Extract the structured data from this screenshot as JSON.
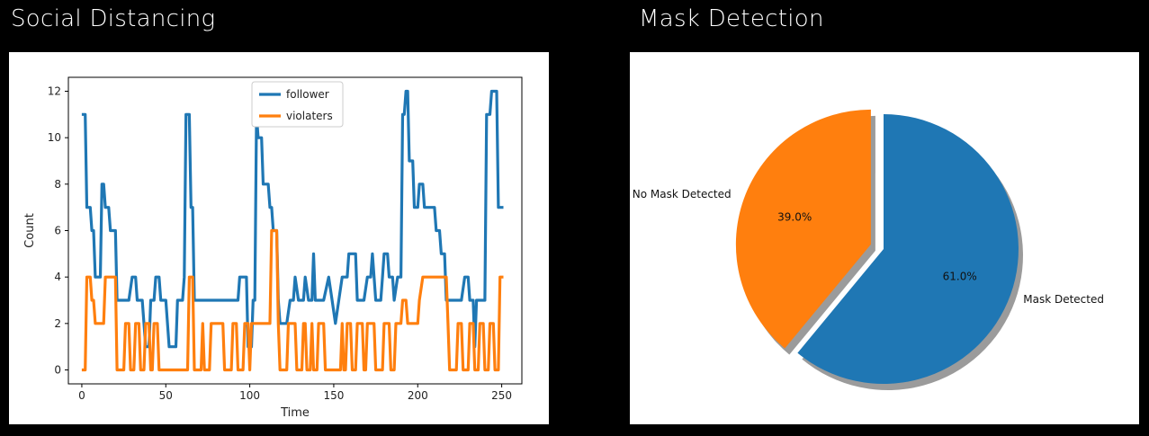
{
  "sections": {
    "left_title": "Social Distancing",
    "right_title": "Mask Detection"
  },
  "chart_data": [
    {
      "type": "line",
      "title": "",
      "xlabel": "Time",
      "ylabel": "Count",
      "xlim": [
        -8,
        262
      ],
      "ylim": [
        -0.6,
        12.6
      ],
      "xticks": [
        0,
        50,
        100,
        150,
        200,
        250
      ],
      "yticks": [
        0,
        2,
        4,
        6,
        8,
        10,
        12
      ],
      "legend_position": "top-center",
      "grid": false,
      "series": [
        {
          "name": "follower",
          "color": "#1f77b4",
          "points": [
            [
              0,
              11
            ],
            [
              2,
              11
            ],
            [
              3,
              7
            ],
            [
              5,
              7
            ],
            [
              6,
              6
            ],
            [
              7,
              6
            ],
            [
              8,
              4
            ],
            [
              11,
              4
            ],
            [
              12,
              8
            ],
            [
              13,
              8
            ],
            [
              14,
              7
            ],
            [
              16,
              7
            ],
            [
              17,
              6
            ],
            [
              20,
              6
            ],
            [
              21,
              3
            ],
            [
              28,
              3
            ],
            [
              30,
              4
            ],
            [
              32,
              4
            ],
            [
              33,
              3
            ],
            [
              36,
              3
            ],
            [
              38,
              1
            ],
            [
              40,
              1
            ],
            [
              41,
              3
            ],
            [
              43,
              3
            ],
            [
              44,
              4
            ],
            [
              46,
              4
            ],
            [
              47,
              3
            ],
            [
              50,
              3
            ],
            [
              52,
              1
            ],
            [
              56,
              1
            ],
            [
              57,
              3
            ],
            [
              60,
              3
            ],
            [
              61,
              4
            ],
            [
              62,
              11
            ],
            [
              64,
              11
            ],
            [
              65,
              7
            ],
            [
              66,
              7
            ],
            [
              67,
              3
            ],
            [
              80,
              3
            ],
            [
              84,
              3
            ],
            [
              93,
              3
            ],
            [
              94,
              4
            ],
            [
              98,
              4
            ],
            [
              99,
              1
            ],
            [
              101,
              1
            ],
            [
              102,
              3
            ],
            [
              103,
              3
            ],
            [
              104,
              11
            ],
            [
              105,
              10
            ],
            [
              107,
              10
            ],
            [
              108,
              8
            ],
            [
              111,
              8
            ],
            [
              112,
              7
            ],
            [
              113,
              7
            ],
            [
              114,
              6
            ],
            [
              116,
              6
            ],
            [
              117,
              3
            ],
            [
              118,
              2
            ],
            [
              122,
              2
            ],
            [
              124,
              3
            ],
            [
              126,
              3
            ],
            [
              127,
              4
            ],
            [
              129,
              3
            ],
            [
              132,
              3
            ],
            [
              133,
              4
            ],
            [
              135,
              3
            ],
            [
              137,
              3
            ],
            [
              138,
              5
            ],
            [
              139,
              3
            ],
            [
              144,
              3
            ],
            [
              147,
              4
            ],
            [
              149,
              3
            ],
            [
              151,
              2
            ],
            [
              155,
              4
            ],
            [
              158,
              4
            ],
            [
              159,
              5
            ],
            [
              163,
              5
            ],
            [
              164,
              3
            ],
            [
              168,
              3
            ],
            [
              170,
              4
            ],
            [
              172,
              4
            ],
            [
              173,
              5
            ],
            [
              175,
              3
            ],
            [
              178,
              3
            ],
            [
              179,
              4
            ],
            [
              180,
              5
            ],
            [
              182,
              5
            ],
            [
              183,
              4
            ],
            [
              185,
              4
            ],
            [
              186,
              3
            ],
            [
              188,
              4
            ],
            [
              190,
              4
            ],
            [
              191,
              11
            ],
            [
              192,
              11
            ],
            [
              193,
              12
            ],
            [
              194,
              12
            ],
            [
              195,
              9
            ],
            [
              197,
              9
            ],
            [
              198,
              7
            ],
            [
              200,
              7
            ],
            [
              201,
              8
            ],
            [
              203,
              8
            ],
            [
              204,
              7
            ],
            [
              210,
              7
            ],
            [
              211,
              6
            ],
            [
              213,
              6
            ],
            [
              214,
              5
            ],
            [
              216,
              5
            ],
            [
              217,
              3
            ],
            [
              226,
              3
            ],
            [
              228,
              4
            ],
            [
              230,
              4
            ],
            [
              231,
              3
            ],
            [
              233,
              3
            ],
            [
              234,
              1
            ],
            [
              235,
              3
            ],
            [
              240,
              3
            ],
            [
              241,
              11
            ],
            [
              243,
              11
            ],
            [
              244,
              12
            ],
            [
              247,
              12
            ],
            [
              248,
              7
            ],
            [
              251,
              7
            ]
          ]
        },
        {
          "name": "violaters",
          "color": "#ff7f0e",
          "points": [
            [
              0,
              0
            ],
            [
              2,
              0
            ],
            [
              3,
              4
            ],
            [
              5,
              4
            ],
            [
              6,
              3
            ],
            [
              7,
              3
            ],
            [
              8,
              2
            ],
            [
              13,
              2
            ],
            [
              14,
              4
            ],
            [
              20,
              4
            ],
            [
              21,
              0
            ],
            [
              25,
              0
            ],
            [
              26,
              2
            ],
            [
              28,
              2
            ],
            [
              29,
              0
            ],
            [
              31,
              0
            ],
            [
              32,
              2
            ],
            [
              34,
              2
            ],
            [
              35,
              0
            ],
            [
              37,
              0
            ],
            [
              38,
              2
            ],
            [
              40,
              2
            ],
            [
              41,
              0
            ],
            [
              42,
              0
            ],
            [
              43,
              2
            ],
            [
              45,
              2
            ],
            [
              46,
              0
            ],
            [
              63,
              0
            ],
            [
              64,
              4
            ],
            [
              66,
              4
            ],
            [
              67,
              0
            ],
            [
              71,
              0
            ],
            [
              72,
              2
            ],
            [
              73,
              0
            ],
            [
              76,
              0
            ],
            [
              77,
              2
            ],
            [
              84,
              2
            ],
            [
              85,
              0
            ],
            [
              89,
              0
            ],
            [
              90,
              2
            ],
            [
              92,
              2
            ],
            [
              93,
              0
            ],
            [
              96,
              0
            ],
            [
              97,
              2
            ],
            [
              99,
              2
            ],
            [
              100,
              0
            ],
            [
              101,
              2
            ],
            [
              112,
              2
            ],
            [
              113,
              6
            ],
            [
              116,
              6
            ],
            [
              117,
              2
            ],
            [
              118,
              0
            ],
            [
              122,
              0
            ],
            [
              123,
              2
            ],
            [
              127,
              2
            ],
            [
              128,
              0
            ],
            [
              131,
              0
            ],
            [
              132,
              2
            ],
            [
              133,
              2
            ],
            [
              134,
              0
            ],
            [
              136,
              0
            ],
            [
              137,
              2
            ],
            [
              138,
              0
            ],
            [
              140,
              0
            ],
            [
              141,
              2
            ],
            [
              144,
              2
            ],
            [
              145,
              0
            ],
            [
              154,
              0
            ],
            [
              155,
              2
            ],
            [
              156,
              0
            ],
            [
              157,
              0
            ],
            [
              158,
              2
            ],
            [
              160,
              2
            ],
            [
              161,
              0
            ],
            [
              163,
              0
            ],
            [
              164,
              2
            ],
            [
              167,
              2
            ],
            [
              168,
              0
            ],
            [
              169,
              0
            ],
            [
              170,
              2
            ],
            [
              174,
              2
            ],
            [
              175,
              0
            ],
            [
              179,
              0
            ],
            [
              180,
              2
            ],
            [
              183,
              2
            ],
            [
              184,
              0
            ],
            [
              186,
              0
            ],
            [
              187,
              2
            ],
            [
              190,
              2
            ],
            [
              191,
              3
            ],
            [
              193,
              3
            ],
            [
              194,
              2
            ],
            [
              200,
              2
            ],
            [
              201,
              3
            ],
            [
              203,
              4
            ],
            [
              217,
              4
            ],
            [
              218,
              2
            ],
            [
              219,
              0
            ],
            [
              223,
              0
            ],
            [
              224,
              2
            ],
            [
              226,
              2
            ],
            [
              227,
              0
            ],
            [
              230,
              0
            ],
            [
              231,
              2
            ],
            [
              233,
              2
            ],
            [
              234,
              0
            ],
            [
              236,
              0
            ],
            [
              237,
              2
            ],
            [
              239,
              2
            ],
            [
              240,
              0
            ],
            [
              242,
              0
            ],
            [
              243,
              2
            ],
            [
              245,
              2
            ],
            [
              246,
              0
            ],
            [
              248,
              0
            ],
            [
              249,
              4
            ],
            [
              251,
              4
            ]
          ]
        }
      ]
    },
    {
      "type": "pie",
      "title": "",
      "shadow": true,
      "start_angle_deg": 90,
      "slices": [
        {
          "label": "No Mask Detected",
          "value": 39.0,
          "pct_label": "39.0%",
          "color": "#ff7f0e",
          "explode": 0.1
        },
        {
          "label": "Mask Detected",
          "value": 61.0,
          "pct_label": "61.0%",
          "color": "#1f77b4",
          "explode": 0
        }
      ]
    }
  ]
}
